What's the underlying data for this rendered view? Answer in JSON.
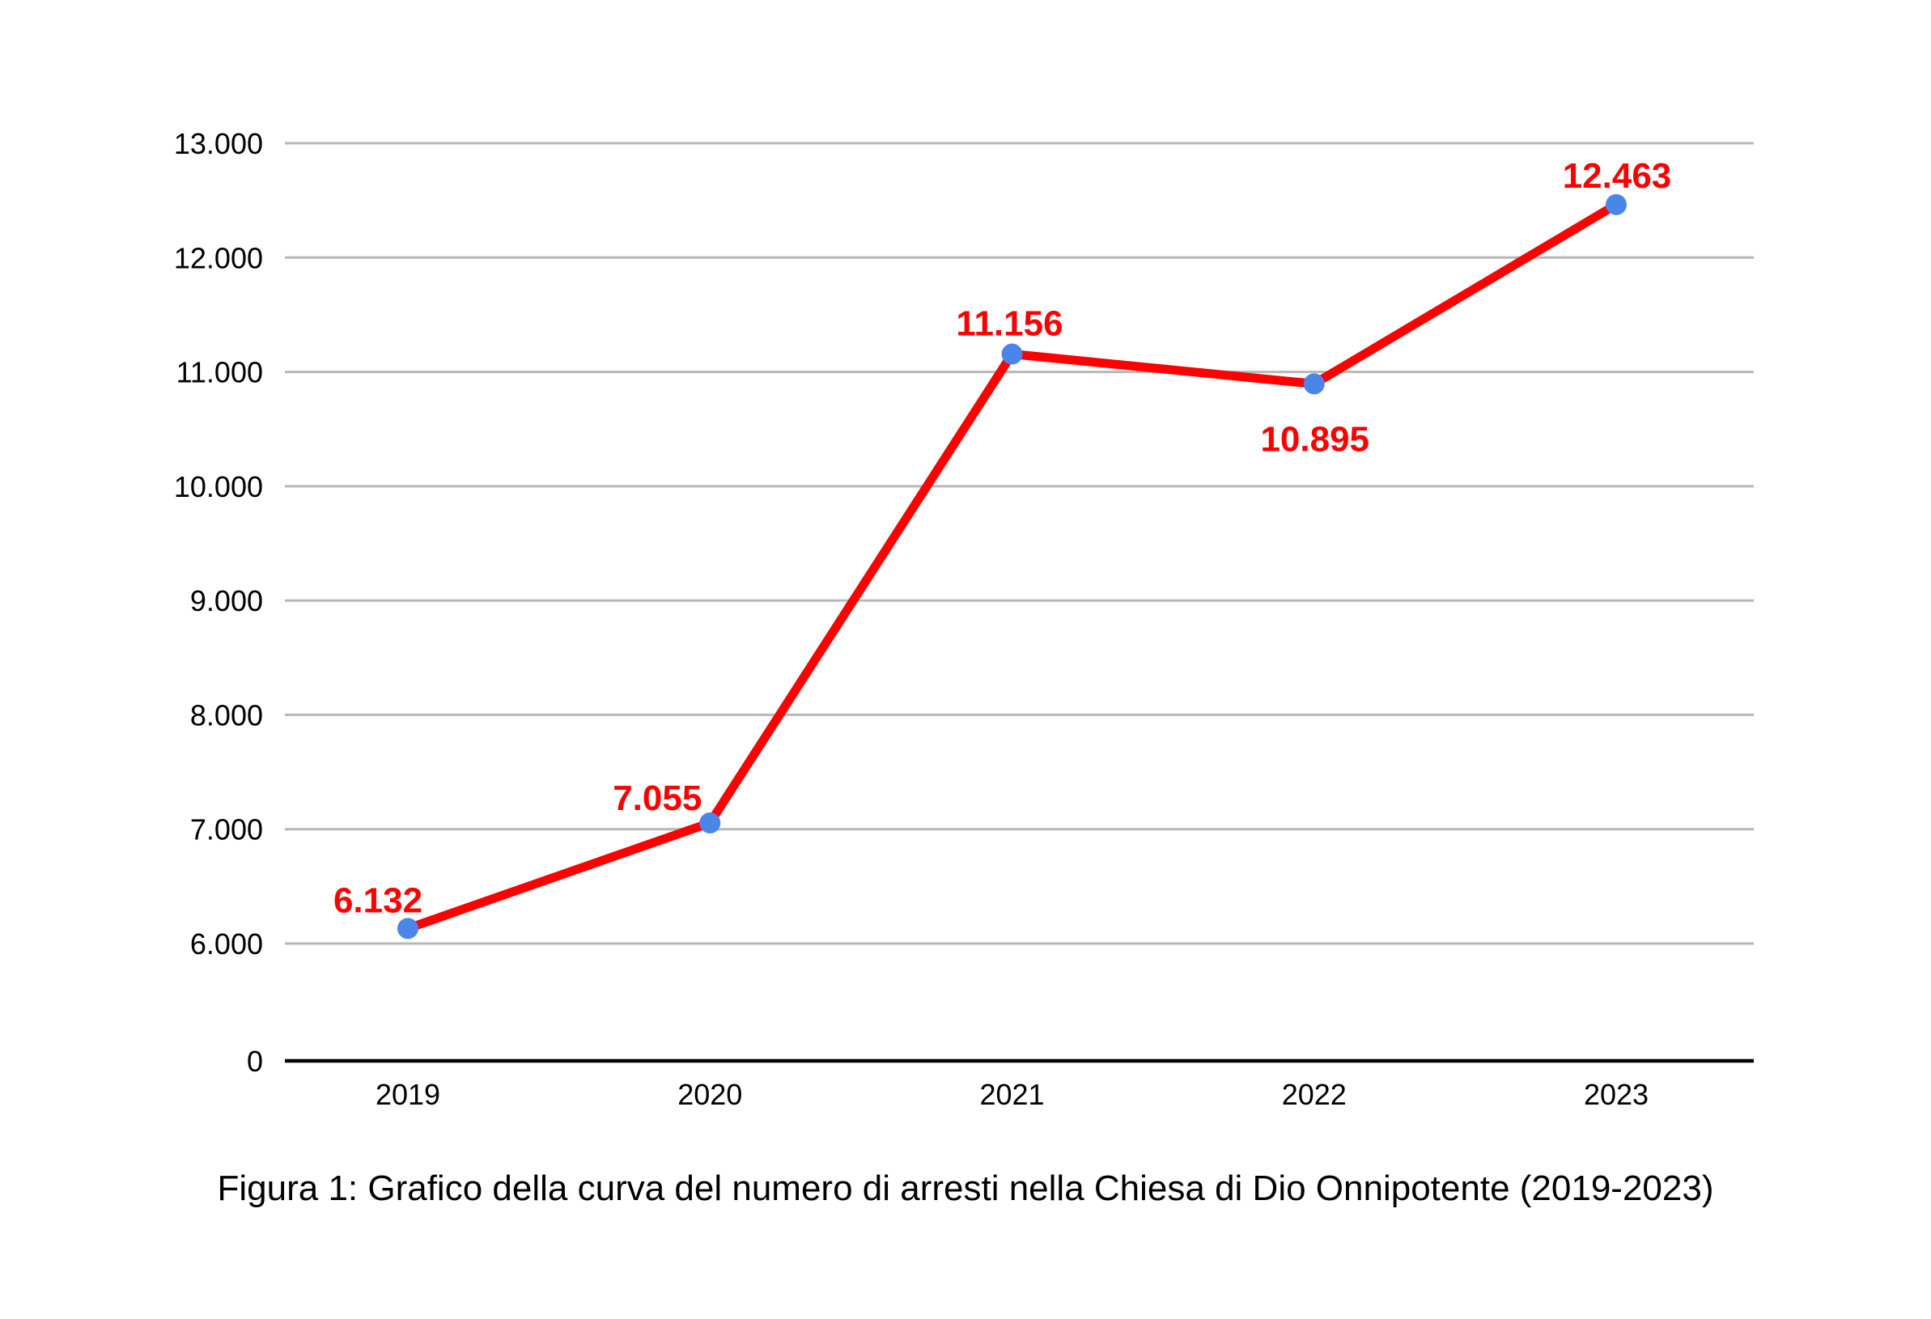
{
  "caption": "Figura 1: Grafico della curva del numero di arresti nella Chiesa di Dio Onnipotente (2019-2023)",
  "chart_data": {
    "type": "line",
    "title": "",
    "xlabel": "",
    "ylabel": "",
    "categories": [
      "2019",
      "2020",
      "2021",
      "2022",
      "2023"
    ],
    "values": [
      6132,
      7055,
      11156,
      10895,
      12463
    ],
    "point_labels": [
      "6.132",
      "7.055",
      "11.156",
      "10.895",
      "12.463"
    ],
    "y_axis": {
      "tick_values": [
        0,
        6000,
        7000,
        8000,
        9000,
        10000,
        11000,
        12000,
        13000
      ],
      "tick_labels": [
        "0",
        "6.000",
        "7.000",
        "8.000",
        "9.000",
        "10.000",
        "11.000",
        "12.000",
        "13.000"
      ],
      "range_shown": [
        6000,
        13000
      ],
      "broken_below": 6000
    },
    "layout": {
      "legend": "none",
      "grid": "horizontal",
      "label_placements": [
        "above-left",
        "above-left",
        "above",
        "below",
        "above"
      ]
    },
    "colors": {
      "line": "#ff0000",
      "point": "#4a86e8",
      "data_label": "#ff0000",
      "gridline": "#b7b7b7",
      "axis": "#000000",
      "tick_text": "#000000",
      "background": "#ffffff"
    }
  }
}
